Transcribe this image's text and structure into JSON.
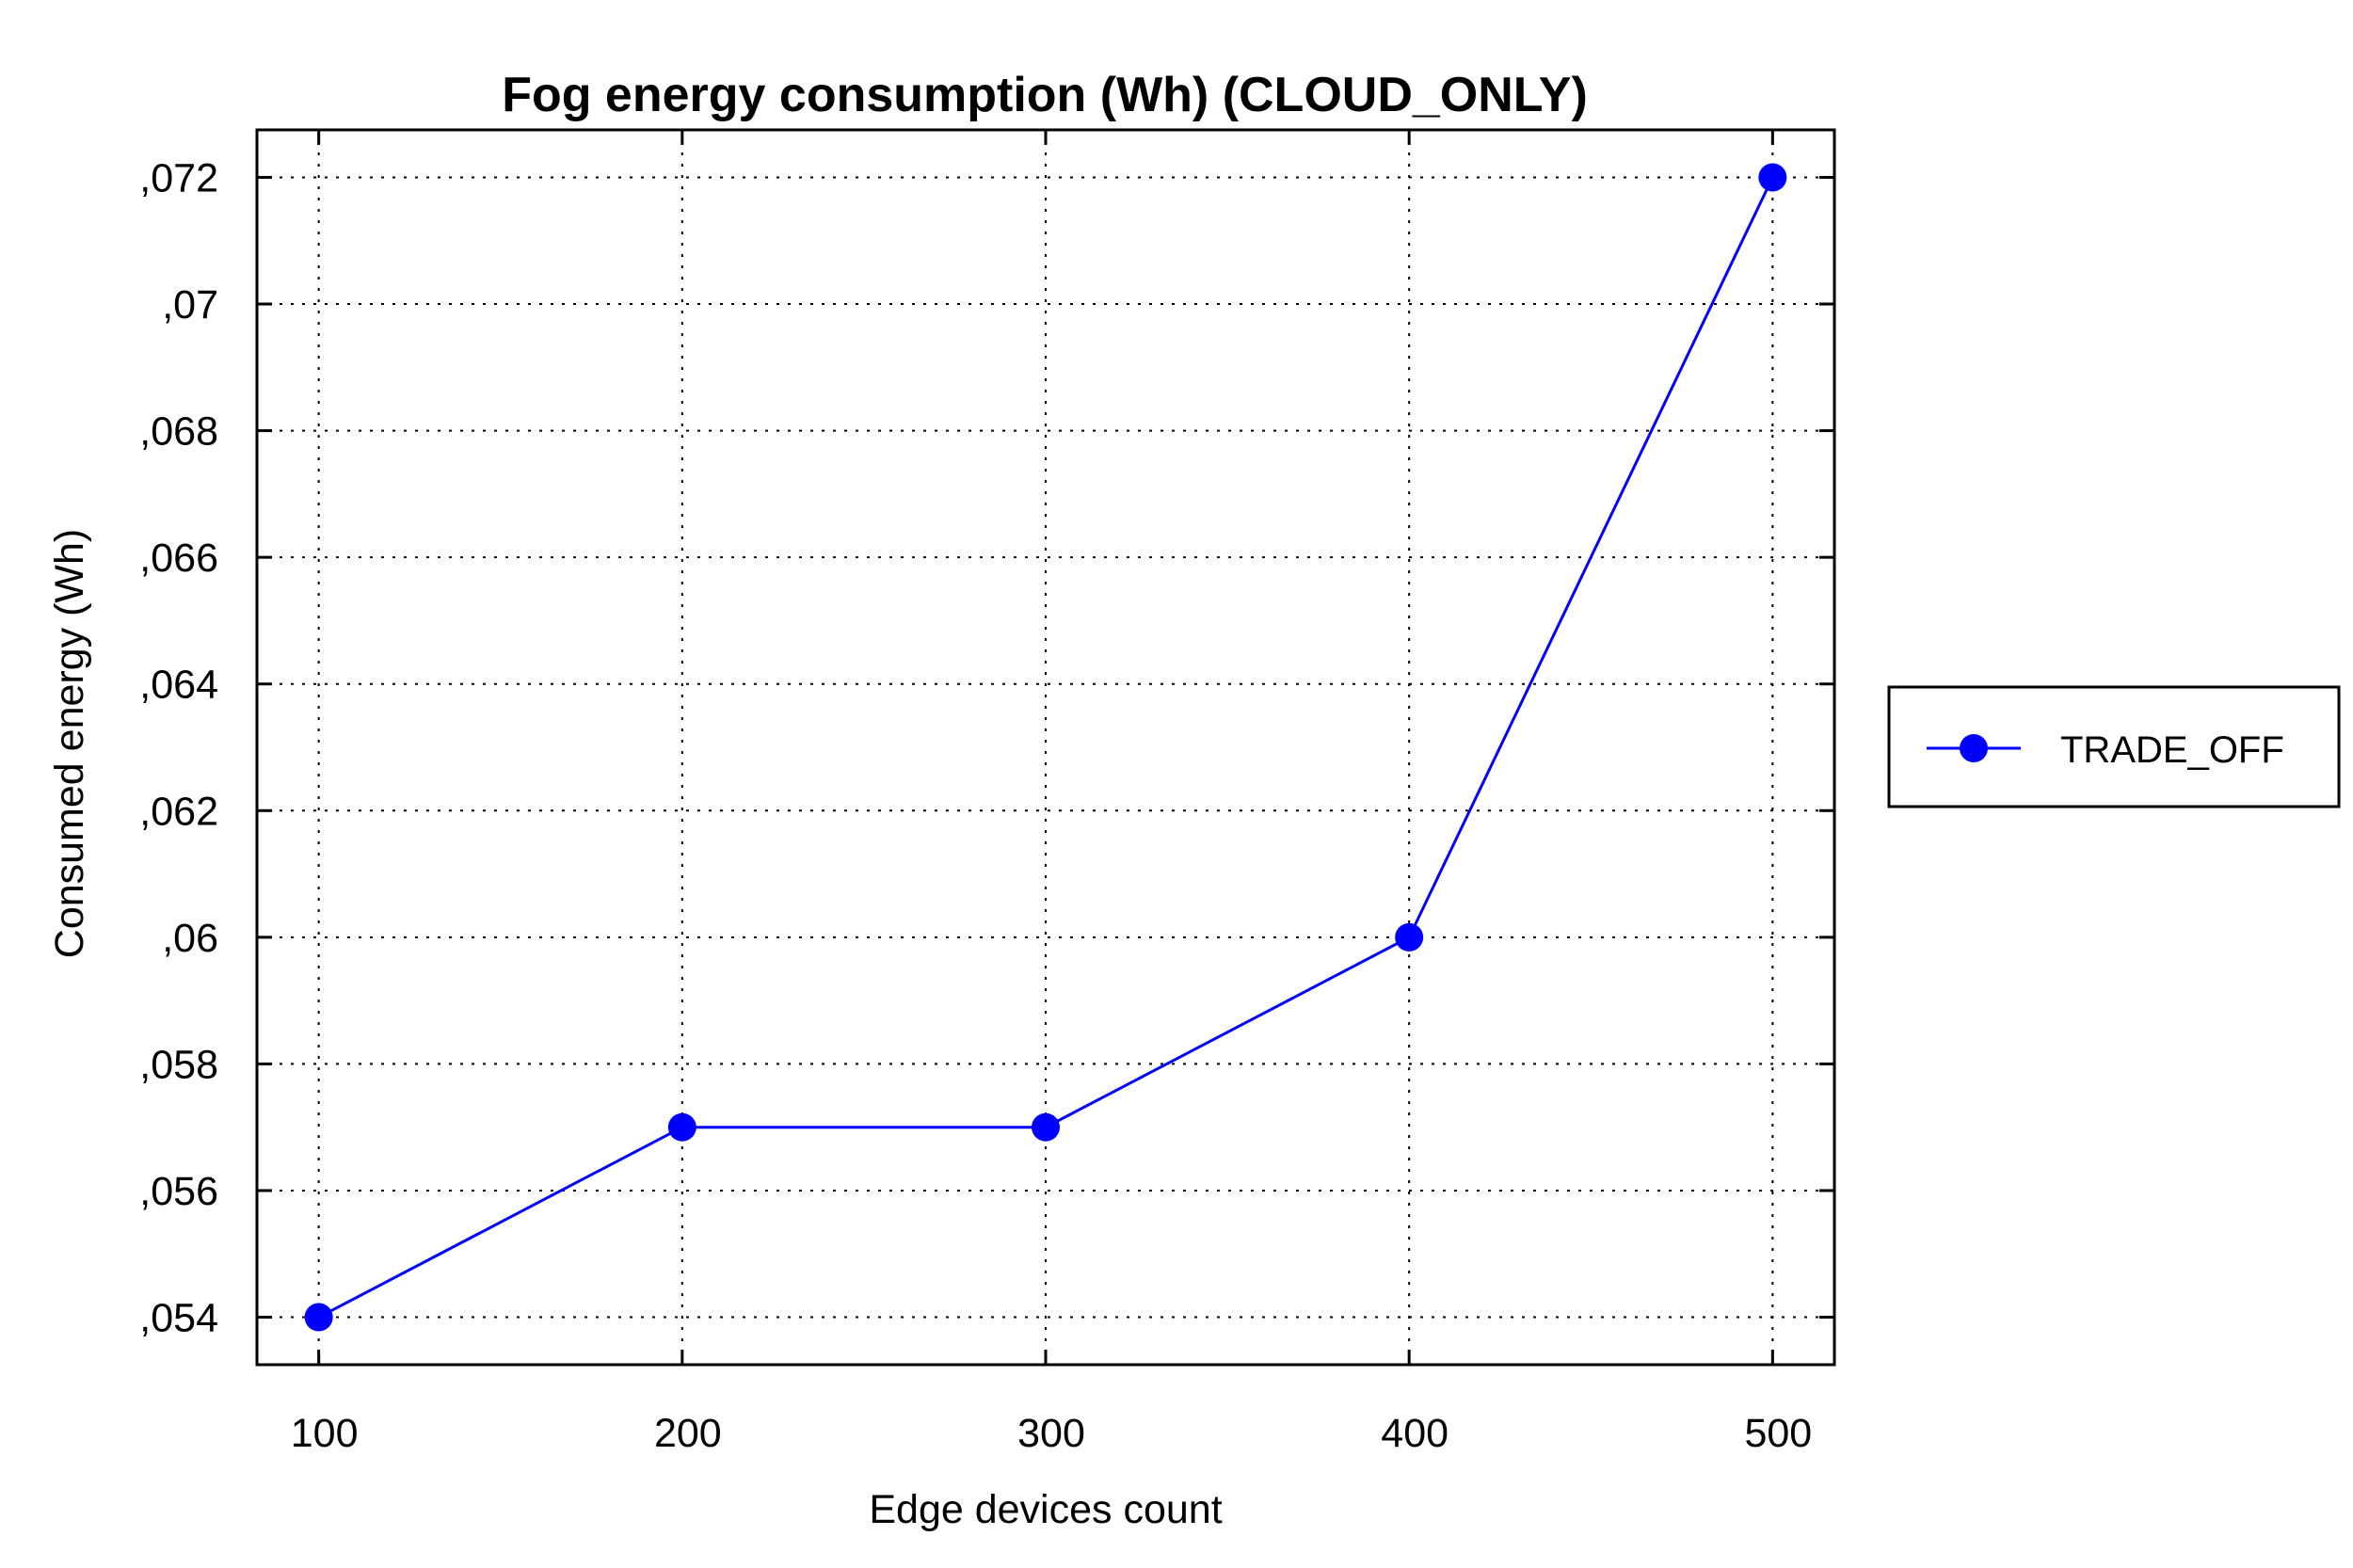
{
  "chart_data": {
    "type": "line",
    "title": "Fog energy consumption (Wh) (CLOUD_ONLY)",
    "xlabel": "Edge devices count",
    "ylabel": "Consumed energy (Wh)",
    "x": [
      100,
      200,
      300,
      400,
      500
    ],
    "x_tick_labels": [
      "100",
      "200",
      "300",
      "400",
      "500"
    ],
    "xlim": [
      83,
      517
    ],
    "y_ticks": [
      0.054,
      0.056,
      0.058,
      0.06,
      0.062,
      0.064,
      0.066,
      0.068,
      0.07,
      0.072
    ],
    "y_tick_labels": [
      ",054",
      ",056",
      ",058",
      ",06",
      ",062",
      ",064",
      ",066",
      ",068",
      ",07",
      ",072"
    ],
    "ylim": [
      0.05325,
      0.07275
    ],
    "grid": true,
    "legend_position": "right",
    "series": [
      {
        "name": "TRADE_OFF",
        "color": "#0000ff",
        "marker": "circle",
        "values": [
          0.054,
          0.057,
          0.057,
          0.06,
          0.072
        ]
      }
    ]
  }
}
